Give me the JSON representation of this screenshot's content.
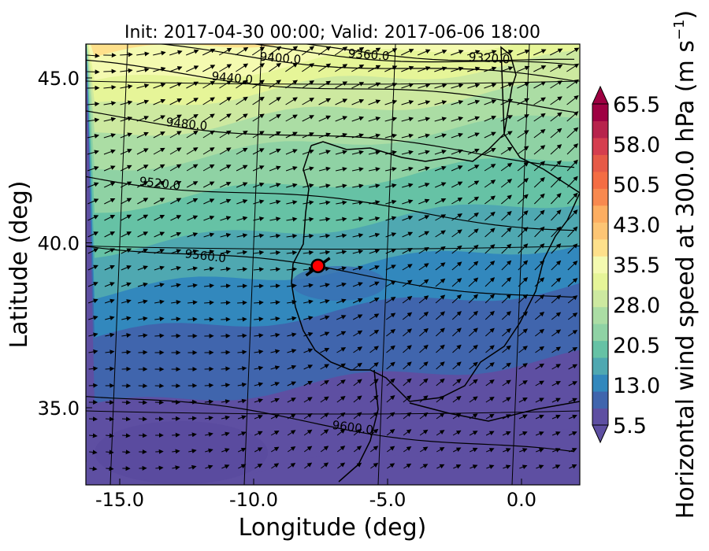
{
  "chart_data": {
    "type": "heatmap",
    "title": "Init: 2017-04-30 00:00; Valid: 2017-06-06 18:00",
    "xlabel": "Longitude (deg)",
    "ylabel": "Latitude (deg)",
    "xlim": [
      -16.0,
      0.3
    ],
    "ylim": [
      32.8,
      46.0
    ],
    "x_ticks": [
      -15.0,
      -10.0,
      -5.0,
      0.0
    ],
    "x_tick_labels": [
      "-15.0",
      "-10.0",
      "-5.0",
      "0.0"
    ],
    "y_ticks": [
      35.0,
      40.0,
      45.0
    ],
    "y_tick_labels": [
      "35.0",
      "40.0",
      "45.0"
    ],
    "colorbar": {
      "label": "Horizontal wind speed at 300.0 hPa (m s",
      "label_superscript": "−1",
      "label_close": ")",
      "ticks": [
        5.5,
        13.0,
        20.5,
        28.0,
        35.5,
        43.0,
        50.5,
        58.0,
        65.5
      ],
      "tick_labels": [
        "5.5",
        "13.0",
        "20.5",
        "28.0",
        "35.5",
        "43.0",
        "50.5",
        "58.0",
        "65.5"
      ],
      "colors": [
        "#5e4fa2",
        "#4065ad",
        "#3288bd",
        "#4fa8b1",
        "#66c2a5",
        "#8fd2a4",
        "#abdda4",
        "#cde9a0",
        "#e6f598",
        "#f4fab0",
        "#fee08b",
        "#fdc574",
        "#fdae61",
        "#f8894f",
        "#f46d43",
        "#e65a47",
        "#d53e4f",
        "#b7234c",
        "#9e0142"
      ],
      "extend": "both"
    },
    "contours": [
      {
        "label": "9320.0",
        "label_lon": -1.2,
        "label_lat": 45.6
      },
      {
        "label": "9360.0",
        "label_lon": -5.7,
        "label_lat": 45.7
      },
      {
        "label": "9400.0",
        "label_lon": -9.0,
        "label_lat": 45.6
      },
      {
        "label": "9440.0",
        "label_lon": -10.8,
        "label_lat": 45.0
      },
      {
        "label": "9480.0",
        "label_lon": -12.5,
        "label_lat": 43.6
      },
      {
        "label": "9520.0",
        "label_lon": -13.5,
        "label_lat": 41.8
      },
      {
        "label": "9560.0",
        "label_lon": -11.8,
        "label_lat": 39.6
      },
      {
        "label": "9600.0",
        "label_lon": -6.3,
        "label_lat": 34.4
      }
    ],
    "marker": {
      "lon": -7.6,
      "lat": 39.3,
      "color": "#ff0000"
    },
    "vectors": {
      "direction": "west-to-east",
      "note": "wind barbs/arrows over field"
    }
  }
}
